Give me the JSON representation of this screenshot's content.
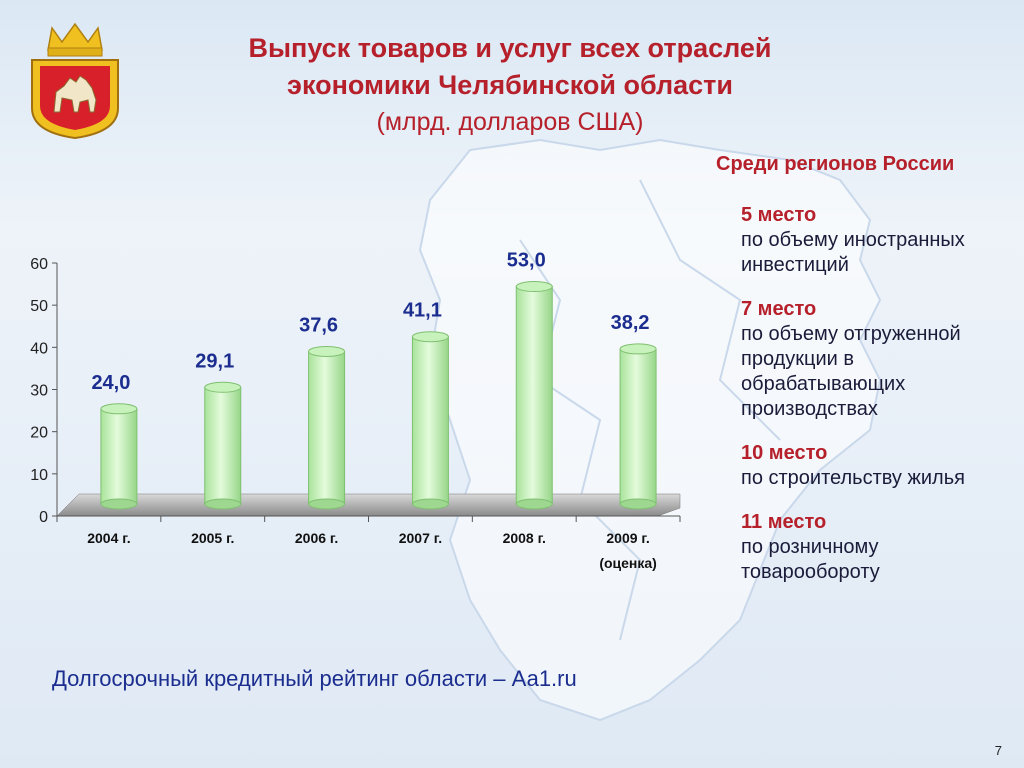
{
  "title": {
    "line1": "Выпуск товаров и услуг всех отраслей",
    "line2": "экономики Челябинской области",
    "units": "(млрд. долларов США)"
  },
  "chart_data": {
    "type": "bar",
    "categories": [
      "2004 г.",
      "2005 г.",
      "2006 г.",
      "2007 г.",
      "2008 г.",
      "2009 г."
    ],
    "category_notes": [
      "",
      "",
      "",
      "",
      "",
      "(оценка)"
    ],
    "values": [
      24.0,
      29.1,
      37.6,
      41.1,
      53.0,
      38.2
    ],
    "data_labels": [
      "24,0",
      "29,1",
      "37,6",
      "41,1",
      "53,0",
      "38,2"
    ],
    "ylim": [
      0,
      60
    ],
    "yticks": [
      0,
      10,
      20,
      30,
      40,
      50,
      60
    ],
    "grid": false,
    "bar_color": "#bfeeb0",
    "label_color": "#1b2d8f"
  },
  "side": {
    "heading": "Среди регионов России",
    "items": [
      {
        "rank": "5 место",
        "desc": "по объему иностранных инвестиций"
      },
      {
        "rank": "7 место",
        "desc": "по объему отгруженной продукции в обрабатывающих производствах"
      },
      {
        "rank": "10 место",
        "desc": "по строительству жилья"
      },
      {
        "rank": "11 место",
        "desc": "по розничному товарообороту"
      }
    ]
  },
  "rating": "Долгосрочный кредитный рейтинг области – Аа1.ru",
  "page_number": "7",
  "colors": {
    "accent": "#b6202b",
    "text_blue": "#1b2d8f"
  }
}
